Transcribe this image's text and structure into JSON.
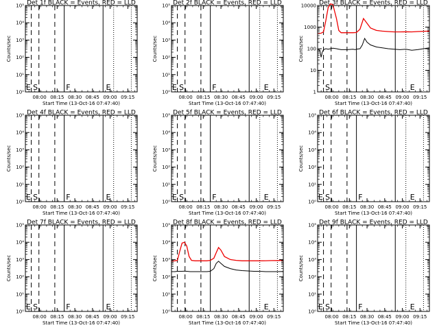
{
  "colors": {
    "events": "#000000",
    "lld": "#ee0000",
    "axis": "#000000"
  },
  "chart_data": [
    {
      "type": "line",
      "scale": "log",
      "title": "Det 1f BLACK = Events, RED = LLD",
      "xlabel": "Start Time (13-Oct-16 07:47:40)",
      "ylabel": "Counts/sec",
      "ylim_exp": [
        0,
        5
      ],
      "yticks": [
        "10⁰",
        "10¹",
        "10²",
        "10³",
        "10⁴",
        "10⁵"
      ],
      "xlim_min": [
        0,
        95
      ],
      "xticks": [
        {
          "t": 12,
          "label": "08:00"
        },
        {
          "t": 27,
          "label": "08:15"
        },
        {
          "t": 42,
          "label": "08:30"
        },
        {
          "t": 57,
          "label": "08:45"
        },
        {
          "t": 72,
          "label": "09:00"
        },
        {
          "t": 87,
          "label": "09:15"
        }
      ],
      "markers": [
        {
          "t": 5,
          "style": "dash"
        },
        {
          "t": 11.5,
          "style": "dash"
        },
        {
          "t": 25,
          "style": "dash"
        },
        {
          "t": 33,
          "style": "solid"
        },
        {
          "t": 66,
          "style": "solid"
        },
        {
          "t": 75,
          "style": "dot"
        },
        {
          "t": 90,
          "style": "dot"
        }
      ],
      "letters": [
        {
          "t": 0.5,
          "text": "E"
        },
        {
          "t": 6.5,
          "text": "S"
        },
        {
          "t": 34.5,
          "text": "F"
        },
        {
          "t": 68.5,
          "text": "E"
        }
      ],
      "series": []
    },
    {
      "type": "line",
      "scale": "log",
      "title": "Det 2f BLACK = Events, RED = LLD",
      "xlabel": "Start Time (13-Oct-16 07:47:40)",
      "ylabel": "Counts/sec",
      "ylim_exp": [
        0,
        5
      ],
      "yticks": [
        "10⁰",
        "10¹",
        "10²",
        "10³",
        "10⁴",
        "10⁵"
      ],
      "xlim_min": [
        0,
        95
      ],
      "xticks": [
        {
          "t": 12,
          "label": "08:00"
        },
        {
          "t": 27,
          "label": "08:15"
        },
        {
          "t": 42,
          "label": "08:30"
        },
        {
          "t": 57,
          "label": "08:45"
        },
        {
          "t": 72,
          "label": "09:00"
        },
        {
          "t": 87,
          "label": "09:15"
        }
      ],
      "markers": [
        {
          "t": 5,
          "style": "dash"
        },
        {
          "t": 11.5,
          "style": "dash"
        },
        {
          "t": 25,
          "style": "dash"
        },
        {
          "t": 33,
          "style": "solid"
        },
        {
          "t": 66,
          "style": "solid"
        },
        {
          "t": 75,
          "style": "dot"
        },
        {
          "t": 90,
          "style": "dot"
        }
      ],
      "letters": [
        {
          "t": 0.5,
          "text": "E"
        },
        {
          "t": 6.5,
          "text": "S"
        },
        {
          "t": 34.5,
          "text": "F"
        },
        {
          "t": 78.5,
          "text": "E"
        }
      ],
      "series": []
    },
    {
      "type": "line",
      "scale": "log",
      "title": "Det 3f BLACK = Events, RED = LLD",
      "xlabel": "Start Time (13-Oct-16 07:47:40)",
      "ylabel": "Counts/sec",
      "ylim_exp": [
        0,
        4
      ],
      "yticks": [
        "1",
        "10",
        "100",
        "1000",
        "10000"
      ],
      "xlim_min": [
        0,
        95
      ],
      "xticks": [
        {
          "t": 12,
          "label": "08:00"
        },
        {
          "t": 27,
          "label": "08:15"
        },
        {
          "t": 42,
          "label": "08:30"
        },
        {
          "t": 57,
          "label": "08:45"
        },
        {
          "t": 72,
          "label": "09:00"
        },
        {
          "t": 87,
          "label": "09:15"
        }
      ],
      "markers": [
        {
          "t": 5,
          "style": "dash"
        },
        {
          "t": 11.5,
          "style": "dash"
        },
        {
          "t": 25,
          "style": "dash"
        },
        {
          "t": 33,
          "style": "solid"
        },
        {
          "t": 66,
          "style": "solid"
        },
        {
          "t": 75,
          "style": "dot"
        },
        {
          "t": 90,
          "style": "dot"
        }
      ],
      "letters": [
        {
          "t": 6.5,
          "text": "S"
        },
        {
          "t": 78.5,
          "text": "E"
        }
      ],
      "series": [
        {
          "color": "red",
          "x": [
            0,
            3,
            5,
            7,
            9,
            11,
            13,
            16,
            18,
            20,
            25,
            30,
            33,
            36,
            39,
            42,
            45,
            50,
            55,
            60,
            65,
            70,
            75,
            80,
            85,
            90,
            95
          ],
          "y": [
            500,
            520,
            600,
            2000,
            8000,
            12000,
            11000,
            2500,
            700,
            550,
            550,
            550,
            560,
            800,
            2500,
            1500,
            900,
            700,
            650,
            620,
            600,
            600,
            610,
            600,
            620,
            640,
            650
          ]
        },
        {
          "color": "black",
          "x": [
            0,
            2,
            3,
            4,
            5,
            7,
            9,
            11,
            13,
            16,
            18,
            20,
            25,
            30,
            32,
            33,
            36,
            38,
            40,
            42,
            45,
            50,
            55,
            60,
            65,
            70,
            75,
            80,
            85,
            90,
            95
          ],
          "y": [
            90,
            85,
            40,
            70,
            90,
            100,
            95,
            100,
            105,
            100,
            95,
            90,
            90,
            95,
            90,
            95,
            100,
            150,
            300,
            200,
            150,
            120,
            110,
            100,
            95,
            90,
            95,
            85,
            90,
            100,
            110
          ]
        }
      ]
    },
    {
      "type": "line",
      "scale": "log",
      "title": "Det 4f BLACK = Events, RED = LLD",
      "xlabel": "Start Time (13-Oct-16 07:47:40)",
      "ylabel": "Counts/sec",
      "ylim_exp": [
        0,
        5
      ],
      "yticks": [
        "10⁰",
        "10¹",
        "10²",
        "10³",
        "10⁴",
        "10⁵"
      ],
      "xlim_min": [
        0,
        95
      ],
      "xticks": [
        {
          "t": 12,
          "label": "08:00"
        },
        {
          "t": 27,
          "label": "08:15"
        },
        {
          "t": 42,
          "label": "08:30"
        },
        {
          "t": 57,
          "label": "08:45"
        },
        {
          "t": 72,
          "label": "09:00"
        },
        {
          "t": 87,
          "label": "09:15"
        }
      ],
      "markers": [
        {
          "t": 5,
          "style": "dash"
        },
        {
          "t": 11.5,
          "style": "dash"
        },
        {
          "t": 25,
          "style": "dash"
        },
        {
          "t": 33,
          "style": "solid"
        },
        {
          "t": 66,
          "style": "solid"
        },
        {
          "t": 75,
          "style": "dot"
        },
        {
          "t": 90,
          "style": "dot"
        }
      ],
      "letters": [
        {
          "t": 0.5,
          "text": "E"
        },
        {
          "t": 6.5,
          "text": "S"
        },
        {
          "t": 34.5,
          "text": "F"
        },
        {
          "t": 68.5,
          "text": "E"
        }
      ],
      "series": []
    },
    {
      "type": "line",
      "scale": "log",
      "title": "Det 5f BLACK = Events, RED = LLD",
      "xlabel": "Start Time (13-Oct-16 07:47:40)",
      "ylabel": "Counts/sec",
      "ylim_exp": [
        0,
        5
      ],
      "yticks": [
        "10⁰",
        "10¹",
        "10²",
        "10³",
        "10⁴",
        "10⁵"
      ],
      "xlim_min": [
        0,
        95
      ],
      "xticks": [
        {
          "t": 12,
          "label": "08:00"
        },
        {
          "t": 27,
          "label": "08:15"
        },
        {
          "t": 42,
          "label": "08:30"
        },
        {
          "t": 57,
          "label": "08:45"
        },
        {
          "t": 72,
          "label": "09:00"
        },
        {
          "t": 87,
          "label": "09:15"
        }
      ],
      "markers": [
        {
          "t": 5,
          "style": "dash"
        },
        {
          "t": 11.5,
          "style": "dash"
        },
        {
          "t": 25,
          "style": "dash"
        },
        {
          "t": 33,
          "style": "solid"
        },
        {
          "t": 66,
          "style": "solid"
        },
        {
          "t": 75,
          "style": "dot"
        },
        {
          "t": 90,
          "style": "dot"
        }
      ],
      "letters": [
        {
          "t": 0.5,
          "text": "E"
        },
        {
          "t": 6.5,
          "text": "S"
        },
        {
          "t": 34.5,
          "text": "F"
        },
        {
          "t": 78.5,
          "text": "E"
        }
      ],
      "series": []
    },
    {
      "type": "line",
      "scale": "log",
      "title": "Det 6f BLACK = Events, RED = LLD",
      "xlabel": "Start Time (13-Oct-16 07:47:40)",
      "ylabel": "Counts/sec",
      "ylim_exp": [
        0,
        5
      ],
      "yticks": [
        "10⁰",
        "10¹",
        "10²",
        "10³",
        "10⁴",
        "10⁵"
      ],
      "xlim_min": [
        0,
        95
      ],
      "xticks": [
        {
          "t": 12,
          "label": "08:00"
        },
        {
          "t": 27,
          "label": "08:15"
        },
        {
          "t": 42,
          "label": "08:30"
        },
        {
          "t": 57,
          "label": "08:45"
        },
        {
          "t": 72,
          "label": "09:00"
        },
        {
          "t": 87,
          "label": "09:15"
        }
      ],
      "markers": [
        {
          "t": 5,
          "style": "dash"
        },
        {
          "t": 11.5,
          "style": "dash"
        },
        {
          "t": 25,
          "style": "dash"
        },
        {
          "t": 33,
          "style": "solid"
        },
        {
          "t": 66,
          "style": "solid"
        },
        {
          "t": 75,
          "style": "dot"
        },
        {
          "t": 90,
          "style": "dot"
        }
      ],
      "letters": [
        {
          "t": 0.5,
          "text": "E"
        },
        {
          "t": 6.5,
          "text": "S"
        },
        {
          "t": 34.5,
          "text": "F"
        },
        {
          "t": 78.5,
          "text": "E"
        }
      ],
      "series": []
    },
    {
      "type": "line",
      "scale": "log",
      "title": "Det 7f BLACK = Events, RED = LLD",
      "xlabel": "Start Time (13-Oct-16 07:47:40)",
      "ylabel": "Counts/sec",
      "ylim_exp": [
        0,
        5
      ],
      "yticks": [
        "10⁰",
        "10¹",
        "10²",
        "10³",
        "10⁴",
        "10⁵"
      ],
      "xlim_min": [
        0,
        95
      ],
      "xticks": [
        {
          "t": 12,
          "label": "08:00"
        },
        {
          "t": 27,
          "label": "08:15"
        },
        {
          "t": 42,
          "label": "08:30"
        },
        {
          "t": 57,
          "label": "08:45"
        },
        {
          "t": 72,
          "label": "09:00"
        },
        {
          "t": 87,
          "label": "09:15"
        }
      ],
      "markers": [
        {
          "t": 5,
          "style": "dash"
        },
        {
          "t": 11.5,
          "style": "dash"
        },
        {
          "t": 25,
          "style": "dash"
        },
        {
          "t": 33,
          "style": "solid"
        },
        {
          "t": 66,
          "style": "solid"
        },
        {
          "t": 75,
          "style": "dot"
        },
        {
          "t": 90,
          "style": "dot"
        }
      ],
      "letters": [
        {
          "t": 0.5,
          "text": "E"
        },
        {
          "t": 6.5,
          "text": "S"
        },
        {
          "t": 34.5,
          "text": "F"
        },
        {
          "t": 68.5,
          "text": "E"
        }
      ],
      "series": []
    },
    {
      "type": "line",
      "scale": "log",
      "title": "Det 8f BLACK = Events, RED = LLD",
      "xlabel": "Start Time (13-Oct-16 07:47:40)",
      "ylabel": "Counts/sec",
      "ylim_exp": [
        0,
        5
      ],
      "yticks": [
        "10⁰",
        "10¹",
        "10²",
        "10³",
        "10⁴",
        "10⁵"
      ],
      "xlim_min": [
        0,
        95
      ],
      "xticks": [
        {
          "t": 12,
          "label": "08:00"
        },
        {
          "t": 27,
          "label": "08:15"
        },
        {
          "t": 42,
          "label": "08:30"
        },
        {
          "t": 57,
          "label": "08:45"
        },
        {
          "t": 72,
          "label": "09:00"
        },
        {
          "t": 87,
          "label": "09:15"
        }
      ],
      "markers": [
        {
          "t": 5,
          "style": "dash"
        },
        {
          "t": 11.5,
          "style": "dash"
        },
        {
          "t": 25,
          "style": "dash"
        },
        {
          "t": 33,
          "style": "solid"
        },
        {
          "t": 66,
          "style": "solid"
        },
        {
          "t": 75,
          "style": "dot"
        },
        {
          "t": 90,
          "style": "dot"
        }
      ],
      "letters": [
        {
          "t": 78.5,
          "text": "E"
        }
      ],
      "series": [
        {
          "color": "red",
          "x": [
            0,
            3,
            5,
            7,
            9,
            11,
            13,
            15,
            17,
            20,
            25,
            30,
            33,
            36,
            38,
            40,
            42,
            45,
            50,
            55,
            60,
            65,
            70,
            75,
            80,
            85,
            90,
            95
          ],
          "y": [
            800,
            850,
            900,
            3000,
            9000,
            10000,
            6000,
            1500,
            900,
            850,
            850,
            850,
            900,
            1200,
            2500,
            5000,
            3500,
            1500,
            1000,
            900,
            850,
            850,
            850,
            850,
            860,
            870,
            880,
            900
          ]
        },
        {
          "color": "black",
          "x": [
            0,
            3,
            5,
            7,
            9,
            11,
            13,
            16,
            18,
            20,
            25,
            30,
            33,
            36,
            38,
            40,
            42,
            45,
            50,
            55,
            60,
            65,
            70,
            75,
            80,
            85,
            90,
            95
          ],
          "y": [
            200,
            200,
            210,
            210,
            210,
            215,
            210,
            200,
            200,
            200,
            200,
            200,
            210,
            300,
            600,
            800,
            600,
            400,
            300,
            250,
            230,
            220,
            210,
            210,
            200,
            200,
            200,
            205
          ]
        }
      ]
    },
    {
      "type": "line",
      "scale": "log",
      "title": "Det 9f BLACK = Events, RED = LLD",
      "xlabel": "Start Time (13-Oct-16 07:47:40)",
      "ylabel": "Counts/sec",
      "ylim_exp": [
        0,
        5
      ],
      "yticks": [
        "10⁰",
        "10¹",
        "10²",
        "10³",
        "10⁴",
        "10⁵"
      ],
      "xlim_min": [
        0,
        95
      ],
      "xticks": [
        {
          "t": 12,
          "label": "08:00"
        },
        {
          "t": 27,
          "label": "08:15"
        },
        {
          "t": 42,
          "label": "08:30"
        },
        {
          "t": 57,
          "label": "08:45"
        },
        {
          "t": 72,
          "label": "09:00"
        },
        {
          "t": 87,
          "label": "09:15"
        }
      ],
      "markers": [
        {
          "t": 5,
          "style": "dash"
        },
        {
          "t": 11.5,
          "style": "dash"
        },
        {
          "t": 25,
          "style": "dash"
        },
        {
          "t": 33,
          "style": "solid"
        },
        {
          "t": 66,
          "style": "solid"
        },
        {
          "t": 75,
          "style": "dot"
        },
        {
          "t": 90,
          "style": "dot"
        }
      ],
      "letters": [
        {
          "t": 0.5,
          "text": "E"
        },
        {
          "t": 6.5,
          "text": "S"
        },
        {
          "t": 34.5,
          "text": "F"
        },
        {
          "t": 78.5,
          "text": "E"
        }
      ],
      "series": []
    }
  ]
}
